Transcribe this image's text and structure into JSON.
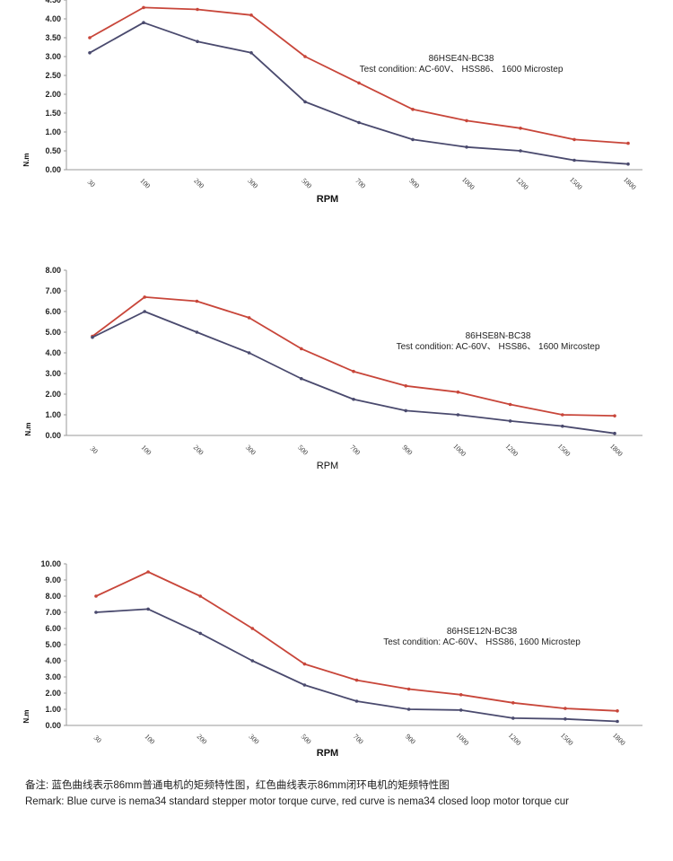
{
  "chart_data": [
    {
      "type": "line",
      "categories": [
        "30",
        "100",
        "200",
        "300",
        "500",
        "700",
        "900",
        "1000",
        "1200",
        "1500",
        "1800"
      ],
      "ylim": [
        0,
        4.5
      ],
      "yticks": [
        "0.00",
        "0.50",
        "1.00",
        "1.50",
        "2.00",
        "2.50",
        "3.00",
        "3.50",
        "4.00",
        "4.50"
      ],
      "xlabel": "RPM",
      "ylabel": "N.m",
      "model": "86HSE4N-BC38",
      "condition": "Test condition:   AC-60V、 HSS86、  1600 Microstep",
      "series": [
        {
          "name": "closed loop",
          "color": "#c8463a",
          "values": [
            3.5,
            4.3,
            4.25,
            4.1,
            3.0,
            2.3,
            1.6,
            1.3,
            1.1,
            0.8,
            0.7
          ]
        },
        {
          "name": "standard",
          "color": "#4a4a6e",
          "values": [
            3.1,
            3.9,
            3.4,
            3.1,
            1.8,
            1.25,
            0.8,
            0.6,
            0.5,
            0.25,
            0.15
          ]
        }
      ]
    },
    {
      "type": "line",
      "categories": [
        "30",
        "100",
        "200",
        "300",
        "500",
        "700",
        "900",
        "1000",
        "1200",
        "1500",
        "1800"
      ],
      "ylim": [
        0,
        8
      ],
      "yticks": [
        "0.00",
        "1.00",
        "2.00",
        "3.00",
        "4.00",
        "5.00",
        "6.00",
        "7.00",
        "8.00"
      ],
      "xlabel": "RPM",
      "ylabel": "N.m",
      "model": "86HSE8N-BC38",
      "condition": "Test condition:    AC-60V、 HSS86、  1600 Mircostep",
      "series": [
        {
          "name": "closed loop",
          "color": "#c8463a",
          "values": [
            4.8,
            6.7,
            6.5,
            5.7,
            4.2,
            3.1,
            2.4,
            2.1,
            1.5,
            1.0,
            0.95
          ]
        },
        {
          "name": "standard",
          "color": "#4a4a6e",
          "values": [
            4.75,
            6.0,
            5.0,
            4.0,
            2.75,
            1.75,
            1.2,
            1.0,
            0.7,
            0.45,
            0.1
          ]
        }
      ]
    },
    {
      "type": "line",
      "categories": [
        "30",
        "100",
        "200",
        "300",
        "500",
        "700",
        "900",
        "1000",
        "1200",
        "1500",
        "1800"
      ],
      "ylim": [
        0,
        10
      ],
      "yticks": [
        "0.00",
        "1.00",
        "2.00",
        "3.00",
        "4.00",
        "5.00",
        "6.00",
        "7.00",
        "8.00",
        "9.00",
        "10.00"
      ],
      "xlabel": "RPM",
      "ylabel": "N.m",
      "model": "86HSE12N-BC38",
      "condition": "Test condition:   AC-60V、  HSS86, 1600 Microstep",
      "series": [
        {
          "name": "closed loop",
          "color": "#c8463a",
          "values": [
            8.0,
            9.5,
            8.0,
            6.0,
            3.8,
            2.8,
            2.25,
            1.9,
            1.4,
            1.05,
            0.9
          ]
        },
        {
          "name": "standard",
          "color": "#4a4a6e",
          "values": [
            7.0,
            7.2,
            5.7,
            4.0,
            2.5,
            1.5,
            1.0,
            0.95,
            0.45,
            0.4,
            0.25
          ]
        }
      ]
    }
  ],
  "remark": {
    "cn": "备注:  蓝色曲线表示86mm普通电机的矩频特性图，红色曲线表示86mm闭环电机的矩频特性图",
    "en": "Remark: Blue curve is nema34 standard stepper motor torque curve, red curve is nema34 closed loop motor torque cur"
  }
}
